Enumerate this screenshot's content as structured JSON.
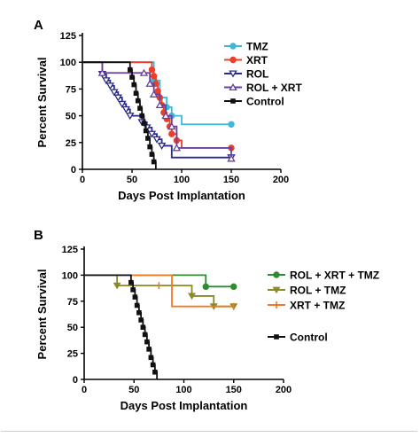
{
  "chart_data": [
    {
      "panel_label": "A",
      "type": "line",
      "step": true,
      "xlabel": "Days Post Implantation",
      "ylabel": "Percent Survival",
      "xlim": [
        0,
        200
      ],
      "ylim": [
        0,
        125
      ],
      "xticks": [
        "0",
        "50",
        "100",
        "150",
        "200"
      ],
      "yticks": [
        "0",
        "25",
        "50",
        "75",
        "100",
        "125"
      ],
      "legend_position": "right",
      "series": [
        {
          "name": "TMZ",
          "color": "#3fb8d8",
          "marker": "circle-filled",
          "x": [
            0,
            65,
            72,
            78,
            85,
            90,
            100,
            150
          ],
          "y": [
            100,
            100,
            83,
            67,
            58,
            50,
            42,
            42
          ],
          "markers_x": [
            72,
            78,
            85,
            90,
            150
          ],
          "markers_y": [
            83,
            67,
            58,
            50,
            42
          ]
        },
        {
          "name": "XRT",
          "color": "#e8402a",
          "marker": "circle-filled",
          "x": [
            0,
            67,
            70,
            72,
            74,
            76,
            78,
            80,
            82,
            85,
            88,
            90,
            95,
            100,
            150
          ],
          "y": [
            100,
            100,
            93,
            87,
            80,
            73,
            67,
            60,
            53,
            47,
            40,
            33,
            27,
            20,
            20
          ],
          "markers_x": [
            70,
            72,
            74,
            76,
            78,
            80,
            82,
            85,
            88,
            90,
            95,
            150
          ],
          "markers_y": [
            93,
            87,
            80,
            73,
            67,
            60,
            53,
            47,
            40,
            33,
            27,
            20
          ]
        },
        {
          "name": "ROL",
          "color": "#2a2a8a",
          "marker": "triangle-down-open",
          "x": [
            0,
            17,
            20,
            24,
            28,
            32,
            36,
            40,
            44,
            48,
            60,
            65,
            70,
            75,
            80,
            90,
            150
          ],
          "y": [
            100,
            100,
            89,
            83,
            78,
            72,
            67,
            61,
            56,
            50,
            44,
            39,
            33,
            28,
            22,
            11,
            11
          ],
          "markers_x": [
            20,
            24,
            28,
            32,
            36,
            40,
            44,
            48,
            60,
            65,
            70,
            75,
            80,
            150
          ],
          "markers_y": [
            89,
            83,
            78,
            72,
            67,
            61,
            56,
            50,
            44,
            39,
            33,
            28,
            22,
            11
          ]
        },
        {
          "name": "ROL + XRT",
          "color": "#6a3f9a",
          "marker": "triangle-up-open",
          "x": [
            0,
            16,
            20,
            62,
            68,
            72,
            78,
            84,
            90,
            95,
            150
          ],
          "y": [
            100,
            100,
            90,
            90,
            80,
            70,
            60,
            50,
            40,
            20,
            10
          ],
          "markers_x": [
            20,
            62,
            68,
            72,
            78,
            84,
            90,
            95,
            150
          ],
          "markers_y": [
            90,
            90,
            80,
            70,
            60,
            50,
            40,
            20,
            10
          ]
        },
        {
          "name": "Control",
          "color": "#111111",
          "marker": "square-filled",
          "x": [
            0,
            45,
            48,
            50,
            52,
            54,
            56,
            58,
            60,
            62,
            64,
            66,
            68,
            70,
            72,
            74
          ],
          "y": [
            100,
            100,
            93,
            86,
            79,
            71,
            64,
            57,
            50,
            43,
            36,
            29,
            21,
            14,
            7,
            0
          ],
          "markers_x": [
            48,
            50,
            52,
            54,
            56,
            58,
            60,
            62,
            64,
            66,
            68,
            70,
            72
          ],
          "markers_y": [
            93,
            86,
            79,
            71,
            64,
            57,
            50,
            43,
            36,
            29,
            21,
            14,
            7
          ]
        }
      ]
    },
    {
      "panel_label": "B",
      "type": "line",
      "step": true,
      "xlabel": "Days Post Implantation",
      "ylabel": "Percent Survival",
      "xlim": [
        0,
        200
      ],
      "ylim": [
        0,
        125
      ],
      "xticks": [
        "0",
        "50",
        "100",
        "150",
        "200"
      ],
      "yticks": [
        "0",
        "25",
        "50",
        "75",
        "100",
        "125"
      ],
      "legend_position": "right",
      "series": [
        {
          "name": "ROL + XRT + TMZ",
          "color": "#2e8b2e",
          "marker": "circle-filled",
          "x": [
            0,
            122,
            150
          ],
          "y": [
            100,
            89,
            89
          ],
          "markers_x": [
            122,
            150
          ],
          "markers_y": [
            89,
            89
          ]
        },
        {
          "name": "ROL +  TMZ",
          "color": "#8a8a2a",
          "marker": "triangle-down-filled",
          "x": [
            0,
            33,
            108,
            130,
            150
          ],
          "y": [
            100,
            90,
            80,
            70,
            70
          ],
          "markers_x": [
            33,
            108,
            130,
            150
          ],
          "markers_y": [
            90,
            80,
            70,
            70
          ]
        },
        {
          "name": "XRT + TMZ",
          "color": "#f07a20",
          "marker": "tick",
          "x": [
            0,
            75,
            88,
            150
          ],
          "y": [
            100,
            100,
            70,
            70
          ],
          "markers_x": [
            75,
            150
          ],
          "markers_y": [
            90,
            70
          ]
        },
        {
          "name": "Control",
          "color": "#111111",
          "marker": "square-filled",
          "x": [
            0,
            45,
            47,
            49,
            51,
            53,
            55,
            57,
            59,
            61,
            63,
            65,
            67,
            69,
            71,
            73
          ],
          "y": [
            100,
            100,
            93,
            86,
            79,
            71,
            64,
            57,
            50,
            43,
            36,
            29,
            21,
            14,
            7,
            0
          ],
          "markers_x": [
            47,
            49,
            51,
            53,
            55,
            57,
            59,
            61,
            63,
            65,
            67,
            69,
            71
          ],
          "markers_y": [
            93,
            86,
            79,
            71,
            64,
            57,
            50,
            43,
            36,
            29,
            21,
            14,
            7
          ]
        }
      ]
    }
  ]
}
